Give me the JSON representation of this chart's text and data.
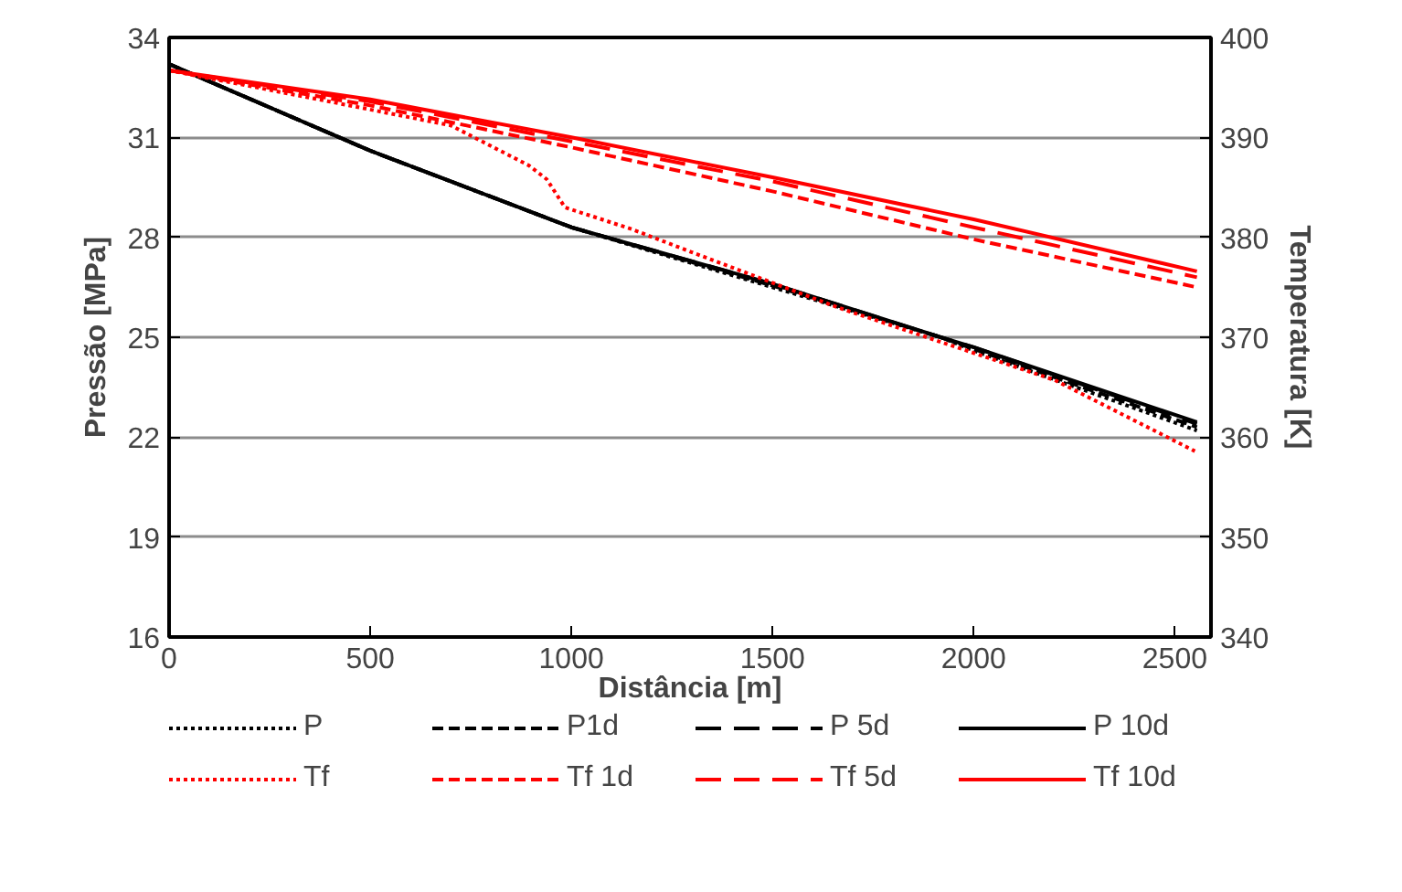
{
  "chart_data": {
    "type": "line",
    "xlabel": "Distância [m]",
    "ylabel": "Pressão [MPa]",
    "y2label": "Temperatura [K]",
    "xlim": [
      0,
      2590
    ],
    "xticks": [
      0,
      500,
      1000,
      1500,
      2000,
      2500
    ],
    "ylim": [
      16,
      34
    ],
    "yticks": [
      16,
      19,
      22,
      25,
      28,
      31,
      34
    ],
    "y2lim": [
      340,
      400
    ],
    "y2ticks": [
      340,
      350,
      360,
      370,
      380,
      390,
      400
    ],
    "grid": "y",
    "legend": "bottom",
    "marker": "none",
    "series": [
      {
        "name": "P",
        "color": "#000000",
        "line_style": "dotted",
        "x": [
          0,
          500,
          1000,
          1500,
          1918,
          2000,
          2555
        ],
        "values": [
          33.2,
          30.6,
          28.3,
          26.5,
          25.0,
          24.6,
          22.2
        ]
      },
      {
        "name": "P1d",
        "color": "#000000",
        "line_style": "dashed",
        "x": [
          0,
          500,
          1000,
          1500,
          1918,
          2000,
          2555
        ],
        "values": [
          33.2,
          30.6,
          28.3,
          26.55,
          25.0,
          24.65,
          22.3
        ]
      },
      {
        "name": "P 5d",
        "color": "#000000",
        "line_style": "longdash",
        "x": [
          0,
          500,
          1000,
          1500,
          1918,
          2000,
          2555
        ],
        "values": [
          33.2,
          30.6,
          28.3,
          26.6,
          25.0,
          24.7,
          22.4
        ]
      },
      {
        "name": "P 10d",
        "color": "#000000",
        "line_style": "solid",
        "x": [
          0,
          500,
          1000,
          1500,
          1918,
          2000,
          2555
        ],
        "values": [
          33.2,
          30.6,
          28.3,
          26.6,
          25.0,
          24.7,
          22.45
        ]
      },
      {
        "name": "Tf",
        "color": "#ff0000",
        "line_style": "dotted",
        "axis": "y2",
        "x": [
          0,
          397,
          700,
          894,
          939,
          984,
          1151,
          1300,
          1661,
          2202,
          2550
        ],
        "values": [
          396.7,
          393.6,
          391.2,
          387.2,
          385.8,
          383.0,
          380.8,
          378.5,
          373.0,
          365.7,
          358.6
        ]
      },
      {
        "name": "Tf 1d",
        "color": "#ff0000",
        "line_style": "dashed",
        "axis": "y2",
        "x": [
          0,
          500,
          1000,
          1500,
          2000,
          2555
        ],
        "values": [
          396.7,
          393.2,
          389.0,
          384.6,
          379.8,
          375.0
        ]
      },
      {
        "name": "Tf 5d",
        "color": "#ff0000",
        "line_style": "longdash",
        "axis": "y2",
        "x": [
          0,
          500,
          1000,
          1500,
          2000,
          2555
        ],
        "values": [
          396.7,
          393.6,
          389.6,
          385.6,
          381.0,
          376.0
        ]
      },
      {
        "name": "Tf 10d",
        "color": "#ff0000",
        "line_style": "solid",
        "axis": "y2",
        "x": [
          0,
          500,
          1000,
          1500,
          2000,
          2555
        ],
        "values": [
          396.7,
          393.8,
          390.0,
          386.0,
          381.8,
          376.6
        ]
      }
    ]
  }
}
